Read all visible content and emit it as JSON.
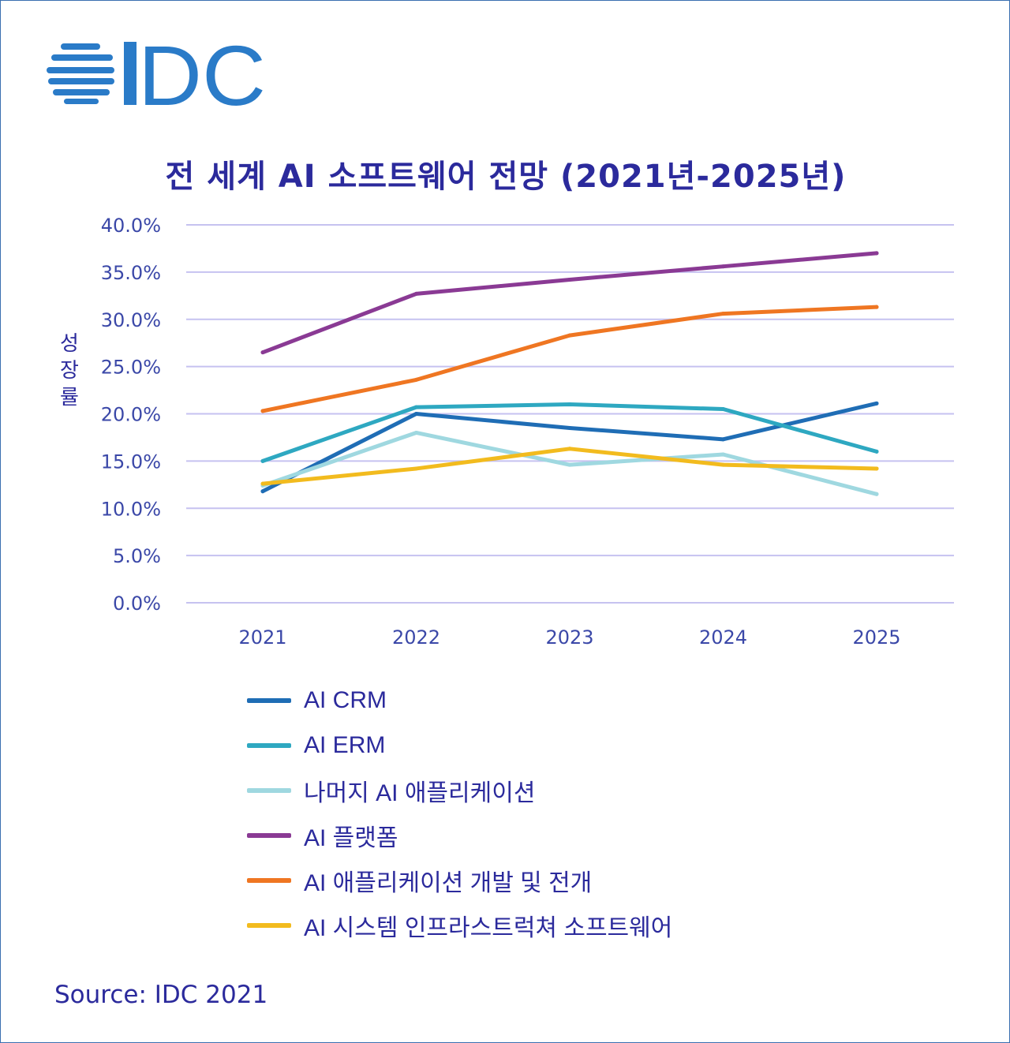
{
  "logo": {
    "text": "IDC",
    "color": "#2a7bc8"
  },
  "chart_data": {
    "type": "line",
    "title": "전 세계 AI 소프트웨어 전망 (2021년-2025년)",
    "ylabel": "성장률",
    "xlabel": "",
    "categories": [
      "2021",
      "2022",
      "2023",
      "2024",
      "2025"
    ],
    "ylim": [
      0,
      40
    ],
    "yticks": [
      "0.0%",
      "5.0%",
      "10.0%",
      "15.0%",
      "20.0%",
      "25.0%",
      "30.0%",
      "35.0%",
      "40.0%"
    ],
    "grid": true,
    "legend_position": "bottom",
    "series": [
      {
        "name": "AI CRM",
        "color": "#1f6db5",
        "values": [
          11.8,
          20.0,
          18.5,
          17.3,
          21.1
        ]
      },
      {
        "name": "AI ERM",
        "color": "#2ea8c1",
        "values": [
          15.0,
          20.7,
          21.0,
          20.5,
          16.0
        ]
      },
      {
        "name": "나머지 AI 애플리케이션",
        "color": "#9fd8e0",
        "values": [
          12.4,
          18.0,
          14.6,
          15.7,
          11.5
        ]
      },
      {
        "name": "AI 플랫폼",
        "color": "#8a3a94",
        "values": [
          26.5,
          32.7,
          34.2,
          35.6,
          37.0
        ]
      },
      {
        "name": "AI 애플리케이션 개발 및 전개",
        "color": "#ef7622",
        "values": [
          20.3,
          23.6,
          28.3,
          30.6,
          31.3
        ]
      },
      {
        "name": "AI 시스템 인프라스트럭쳐 소프트웨어",
        "color": "#f2bb1e",
        "values": [
          12.6,
          14.2,
          16.3,
          14.6,
          14.2
        ]
      }
    ]
  },
  "source": "Source: IDC 2021"
}
